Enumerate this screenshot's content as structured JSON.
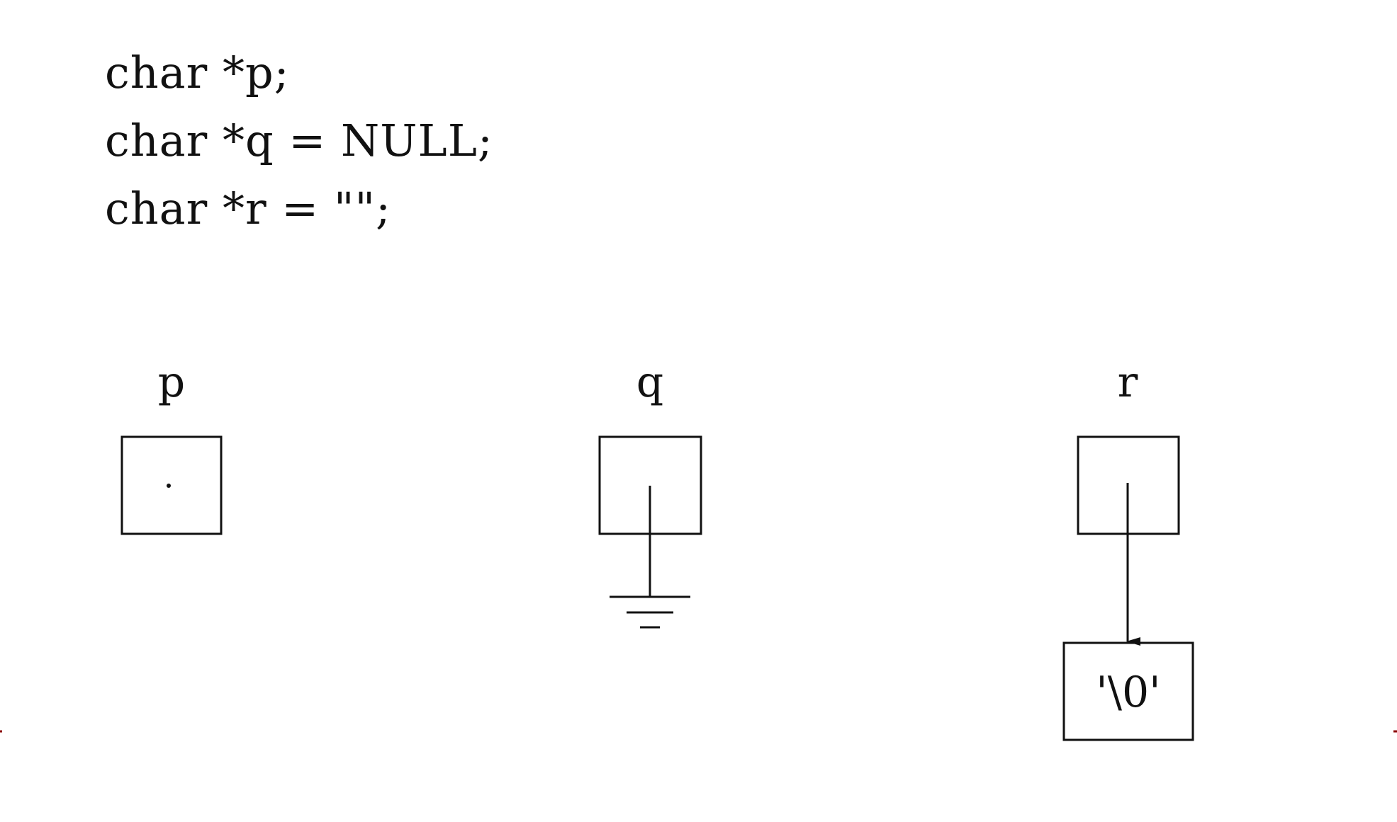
{
  "code": {
    "lines": [
      "char *p;",
      "char *q = NULL;",
      "char *r = \"\";"
    ]
  },
  "diagram": {
    "variables": [
      {
        "name": "p",
        "state": "uninitialized"
      },
      {
        "name": "q",
        "state": "null-pointer"
      },
      {
        "name": "r",
        "state": "points-to-empty-string"
      }
    ],
    "target_cell": "'\\0'"
  },
  "colors": {
    "ink": "#111111",
    "background": "#ffffff",
    "edge_mark": "#8b0000"
  }
}
